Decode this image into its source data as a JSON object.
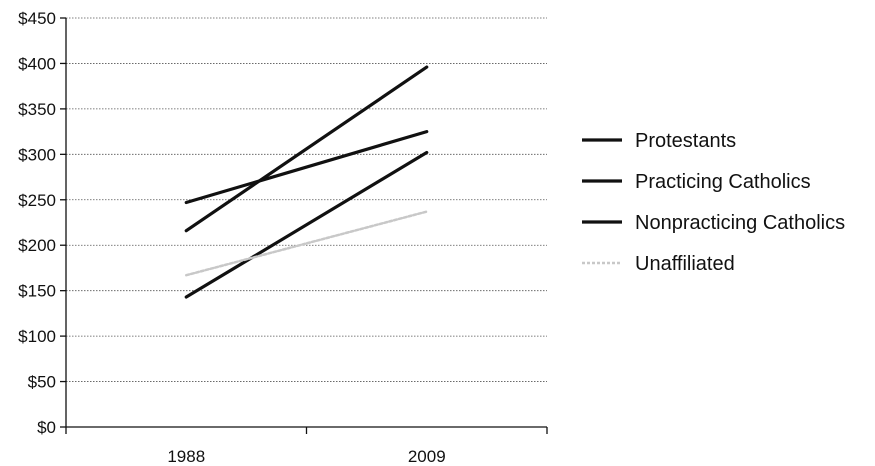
{
  "chart_data": {
    "type": "line",
    "categories": [
      "1988",
      "2009"
    ],
    "ylim": [
      0,
      450
    ],
    "ytick_step": 50,
    "ytick_prefix": "$",
    "grid": true,
    "legend_position": "right",
    "series": [
      {
        "name": "Protestants",
        "values": [
          216,
          396
        ],
        "color": "#111111",
        "style": "solid"
      },
      {
        "name": "Practicing Catholics",
        "values": [
          247,
          325
        ],
        "color": "#111111",
        "style": "solid"
      },
      {
        "name": "Nonpracticing Catholics",
        "values": [
          143,
          302
        ],
        "color": "#111111",
        "style": "solid"
      },
      {
        "name": "Unaffiliated",
        "values": [
          167,
          237
        ],
        "color": "#c8c8c8",
        "style": "faint"
      }
    ],
    "title": "",
    "xlabel": "",
    "ylabel": ""
  }
}
